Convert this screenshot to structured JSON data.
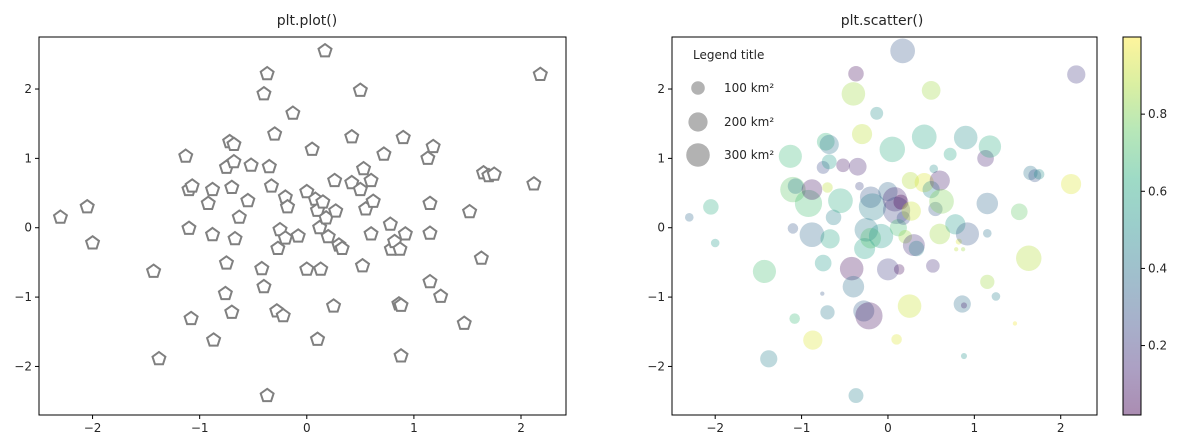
{
  "chart_data": [
    {
      "type": "scatter",
      "title": "plt.plot()",
      "xlabel": "",
      "ylabel": "",
      "xlim": [
        -2.5,
        2.42
      ],
      "ylim": [
        -2.7,
        2.75
      ],
      "xticks": [
        -2,
        -1,
        0,
        1,
        2
      ],
      "yticks": [
        -2,
        -1,
        0,
        1,
        2
      ],
      "marker": "pentagon",
      "marker_color": "#808080",
      "points": [
        [
          -2.3,
          0.15
        ],
        [
          -2.05,
          0.3
        ],
        [
          -2.0,
          -0.22
        ],
        [
          -1.43,
          -0.63
        ],
        [
          -1.38,
          -1.89
        ],
        [
          -1.13,
          1.03
        ],
        [
          -1.1,
          0.55
        ],
        [
          -1.07,
          0.6
        ],
        [
          -1.1,
          -0.01
        ],
        [
          -1.08,
          -1.31
        ],
        [
          -0.92,
          0.35
        ],
        [
          -0.88,
          0.55
        ],
        [
          -0.88,
          -0.1
        ],
        [
          -0.87,
          -1.62
        ],
        [
          -0.75,
          0.87
        ],
        [
          -0.72,
          1.24
        ],
        [
          -0.68,
          1.2
        ],
        [
          -0.68,
          0.95
        ],
        [
          -0.7,
          0.58
        ],
        [
          -0.67,
          -0.16
        ],
        [
          -0.7,
          -1.22
        ],
        [
          -0.75,
          -0.51
        ],
        [
          -0.76,
          -0.95
        ],
        [
          -0.63,
          0.15
        ],
        [
          -0.55,
          0.39
        ],
        [
          -0.52,
          0.9
        ],
        [
          -0.4,
          1.93
        ],
        [
          -0.37,
          2.22
        ],
        [
          -0.35,
          0.88
        ],
        [
          -0.33,
          0.6
        ],
        [
          -0.3,
          1.35
        ],
        [
          -0.2,
          0.44
        ],
        [
          -0.18,
          0.3
        ],
        [
          -0.27,
          -0.3
        ],
        [
          -0.25,
          -0.03
        ],
        [
          -0.2,
          -0.15
        ],
        [
          -0.08,
          -0.12
        ],
        [
          -0.42,
          -0.59
        ],
        [
          -0.4,
          -0.85
        ],
        [
          -0.28,
          -1.2
        ],
        [
          -0.22,
          -1.27
        ],
        [
          -0.37,
          -2.42
        ],
        [
          -0.13,
          1.65
        ],
        [
          0.05,
          1.13
        ],
        [
          0.0,
          0.52
        ],
        [
          0.08,
          0.41
        ],
        [
          0.1,
          0.25
        ],
        [
          0.12,
          0.0
        ],
        [
          0.15,
          0.37
        ],
        [
          0.18,
          0.14
        ],
        [
          0.2,
          -0.13
        ],
        [
          0.26,
          0.68
        ],
        [
          0.27,
          0.24
        ],
        [
          0.3,
          -0.25
        ],
        [
          0.33,
          -0.3
        ],
        [
          0.0,
          -0.6
        ],
        [
          0.13,
          -0.6
        ],
        [
          0.25,
          -1.13
        ],
        [
          0.1,
          -1.61
        ],
        [
          0.17,
          2.55
        ],
        [
          0.42,
          1.31
        ],
        [
          0.42,
          0.65
        ],
        [
          0.5,
          0.55
        ],
        [
          0.53,
          0.85
        ],
        [
          0.55,
          0.27
        ],
        [
          0.6,
          0.68
        ],
        [
          0.62,
          0.38
        ],
        [
          0.6,
          -0.09
        ],
        [
          0.52,
          -0.55
        ],
        [
          0.72,
          1.06
        ],
        [
          0.78,
          0.05
        ],
        [
          0.79,
          -0.31
        ],
        [
          0.82,
          -0.2
        ],
        [
          0.87,
          -0.31
        ],
        [
          0.92,
          -0.09
        ],
        [
          0.9,
          1.3
        ],
        [
          0.86,
          -1.1
        ],
        [
          0.88,
          -1.12
        ],
        [
          0.88,
          -1.85
        ],
        [
          0.5,
          1.98
        ],
        [
          1.13,
          1.0
        ],
        [
          1.18,
          1.17
        ],
        [
          1.15,
          0.35
        ],
        [
          1.15,
          -0.08
        ],
        [
          1.15,
          -0.78
        ],
        [
          1.25,
          -0.99
        ],
        [
          1.47,
          -1.38
        ],
        [
          1.52,
          0.23
        ],
        [
          1.63,
          -0.44
        ],
        [
          1.65,
          0.79
        ],
        [
          1.7,
          0.75
        ],
        [
          1.75,
          0.77
        ],
        [
          2.12,
          0.63
        ],
        [
          2.18,
          2.21
        ]
      ]
    },
    {
      "type": "scatter",
      "title": "plt.scatter()",
      "xlabel": "",
      "ylabel": "",
      "xlim": [
        -2.5,
        2.42
      ],
      "ylim": [
        -2.7,
        2.75
      ],
      "xticks": [
        -2,
        -1,
        0,
        1,
        2
      ],
      "yticks": [
        -2,
        -1,
        0,
        1,
        2
      ],
      "alpha": 0.3,
      "colormap": "viridis",
      "colorbar": {
        "range": [
          0.02,
          1.0
        ],
        "ticks": [
          0.2,
          0.4,
          0.6,
          0.8
        ]
      },
      "legend": {
        "title": "Legend title",
        "placement": "upper-left",
        "items": [
          {
            "label": "100 km²",
            "area": 100
          },
          {
            "label": "200 km²",
            "area": 200
          },
          {
            "label": "300 km²",
            "area": 300
          }
        ]
      },
      "points": [
        {
          "x": -2.3,
          "y": 0.15,
          "size": 40,
          "c": 0.35
        },
        {
          "x": -2.05,
          "y": 0.3,
          "size": 130,
          "c": 0.62
        },
        {
          "x": -2.0,
          "y": -0.22,
          "size": 40,
          "c": 0.55
        },
        {
          "x": -1.43,
          "y": -0.63,
          "size": 290,
          "c": 0.7
        },
        {
          "x": -1.38,
          "y": -1.89,
          "size": 160,
          "c": 0.45
        },
        {
          "x": -1.13,
          "y": 1.03,
          "size": 290,
          "c": 0.68
        },
        {
          "x": -1.1,
          "y": 0.55,
          "size": 350,
          "c": 0.74
        },
        {
          "x": -1.07,
          "y": 0.6,
          "size": 130,
          "c": 0.42
        },
        {
          "x": -1.1,
          "y": -0.01,
          "size": 60,
          "c": 0.3
        },
        {
          "x": -1.08,
          "y": -1.31,
          "size": 60,
          "c": 0.68
        },
        {
          "x": -0.92,
          "y": 0.35,
          "size": 400,
          "c": 0.7
        },
        {
          "x": -0.88,
          "y": 0.55,
          "size": 230,
          "c": 0.08
        },
        {
          "x": -0.88,
          "y": -0.1,
          "size": 330,
          "c": 0.35
        },
        {
          "x": -0.87,
          "y": -1.62,
          "size": 200,
          "c": 0.95
        },
        {
          "x": -0.75,
          "y": 0.87,
          "size": 90,
          "c": 0.25
        },
        {
          "x": -0.72,
          "y": 1.24,
          "size": 170,
          "c": 0.65
        },
        {
          "x": -0.68,
          "y": 1.2,
          "size": 200,
          "c": 0.4
        },
        {
          "x": -0.68,
          "y": 0.95,
          "size": 120,
          "c": 0.55
        },
        {
          "x": -0.7,
          "y": 0.58,
          "size": 60,
          "c": 0.9
        },
        {
          "x": -0.67,
          "y": -0.16,
          "size": 200,
          "c": 0.6
        },
        {
          "x": -0.7,
          "y": -1.22,
          "size": 110,
          "c": 0.42
        },
        {
          "x": -0.75,
          "y": -0.51,
          "size": 150,
          "c": 0.55
        },
        {
          "x": -0.76,
          "y": -0.95,
          "size": 10,
          "c": 0.3
        },
        {
          "x": -0.63,
          "y": 0.15,
          "size": 130,
          "c": 0.45
        },
        {
          "x": -0.55,
          "y": 0.39,
          "size": 330,
          "c": 0.62
        },
        {
          "x": -0.52,
          "y": 0.9,
          "size": 100,
          "c": 0.08
        },
        {
          "x": -0.4,
          "y": 1.93,
          "size": 300,
          "c": 0.85
        },
        {
          "x": -0.37,
          "y": 2.22,
          "size": 130,
          "c": 0.05
        },
        {
          "x": -0.35,
          "y": 0.88,
          "size": 170,
          "c": 0.12
        },
        {
          "x": -0.33,
          "y": 0.6,
          "size": 40,
          "c": 0.22
        },
        {
          "x": -0.3,
          "y": 1.35,
          "size": 220,
          "c": 0.9
        },
        {
          "x": -0.2,
          "y": 0.44,
          "size": 250,
          "c": 0.3
        },
        {
          "x": -0.18,
          "y": 0.3,
          "size": 400,
          "c": 0.45
        },
        {
          "x": -0.27,
          "y": -0.3,
          "size": 240,
          "c": 0.58
        },
        {
          "x": -0.25,
          "y": -0.03,
          "size": 300,
          "c": 0.42
        },
        {
          "x": -0.2,
          "y": -0.15,
          "size": 230,
          "c": 0.72
        },
        {
          "x": -0.08,
          "y": -0.12,
          "size": 320,
          "c": 0.55
        },
        {
          "x": -0.42,
          "y": -0.59,
          "size": 300,
          "c": 0.05
        },
        {
          "x": -0.4,
          "y": -0.85,
          "size": 250,
          "c": 0.38
        },
        {
          "x": -0.28,
          "y": -1.2,
          "size": 240,
          "c": 0.32
        },
        {
          "x": -0.22,
          "y": -1.27,
          "size": 400,
          "c": 0.06
        },
        {
          "x": -0.37,
          "y": -2.42,
          "size": 120,
          "c": 0.45
        },
        {
          "x": -0.13,
          "y": 1.65,
          "size": 90,
          "c": 0.5
        },
        {
          "x": 0.05,
          "y": 1.13,
          "size": 350,
          "c": 0.62
        },
        {
          "x": 0.0,
          "y": 0.52,
          "size": 200,
          "c": 0.35
        },
        {
          "x": 0.08,
          "y": 0.41,
          "size": 320,
          "c": 0.12
        },
        {
          "x": 0.1,
          "y": 0.25,
          "size": 400,
          "c": 0.22
        },
        {
          "x": 0.12,
          "y": 0.0,
          "size": 160,
          "c": 0.7
        },
        {
          "x": 0.15,
          "y": 0.37,
          "size": 120,
          "c": 0.02
        },
        {
          "x": 0.18,
          "y": 0.14,
          "size": 100,
          "c": 0.25
        },
        {
          "x": 0.2,
          "y": -0.13,
          "size": 100,
          "c": 0.85
        },
        {
          "x": 0.26,
          "y": 0.68,
          "size": 160,
          "c": 0.88
        },
        {
          "x": 0.27,
          "y": 0.24,
          "size": 200,
          "c": 0.92
        },
        {
          "x": 0.3,
          "y": -0.25,
          "size": 260,
          "c": 0.15
        },
        {
          "x": 0.33,
          "y": -0.3,
          "size": 130,
          "c": 0.45
        },
        {
          "x": 0.0,
          "y": -0.6,
          "size": 260,
          "c": 0.2
        },
        {
          "x": 0.13,
          "y": -0.6,
          "size": 60,
          "c": 0.05
        },
        {
          "x": 0.25,
          "y": -1.13,
          "size": 300,
          "c": 0.92
        },
        {
          "x": 0.1,
          "y": -1.61,
          "size": 60,
          "c": 0.95
        },
        {
          "x": 0.17,
          "y": 2.55,
          "size": 330,
          "c": 0.3
        },
        {
          "x": 0.42,
          "y": 1.31,
          "size": 330,
          "c": 0.6
        },
        {
          "x": 0.42,
          "y": 0.65,
          "size": 200,
          "c": 0.95
        },
        {
          "x": 0.5,
          "y": 0.55,
          "size": 160,
          "c": 0.48
        },
        {
          "x": 0.53,
          "y": 0.85,
          "size": 40,
          "c": 0.5
        },
        {
          "x": 0.55,
          "y": 0.27,
          "size": 110,
          "c": 0.3
        },
        {
          "x": 0.6,
          "y": 0.68,
          "size": 220,
          "c": 0.1
        },
        {
          "x": 0.62,
          "y": 0.38,
          "size": 330,
          "c": 0.8
        },
        {
          "x": 0.6,
          "y": -0.09,
          "size": 230,
          "c": 0.85
        },
        {
          "x": 0.52,
          "y": -0.55,
          "size": 100,
          "c": 0.15
        },
        {
          "x": 0.72,
          "y": 1.06,
          "size": 90,
          "c": 0.6
        },
        {
          "x": 0.78,
          "y": 0.05,
          "size": 220,
          "c": 0.55
        },
        {
          "x": 0.79,
          "y": -0.31,
          "size": 10,
          "c": 0.9
        },
        {
          "x": 0.82,
          "y": -0.2,
          "size": 20,
          "c": 0.95
        },
        {
          "x": 0.87,
          "y": -0.31,
          "size": 10,
          "c": 0.85
        },
        {
          "x": 0.92,
          "y": -0.09,
          "size": 290,
          "c": 0.3
        },
        {
          "x": 0.9,
          "y": 1.3,
          "size": 300,
          "c": 0.5
        },
        {
          "x": 0.86,
          "y": -1.1,
          "size": 160,
          "c": 0.38
        },
        {
          "x": 0.88,
          "y": -1.12,
          "size": 20,
          "c": 0.1
        },
        {
          "x": 0.88,
          "y": -1.85,
          "size": 20,
          "c": 0.52
        },
        {
          "x": 0.5,
          "y": 1.98,
          "size": 190,
          "c": 0.85
        },
        {
          "x": 1.13,
          "y": 1.0,
          "size": 150,
          "c": 0.12
        },
        {
          "x": 1.18,
          "y": 1.17,
          "size": 270,
          "c": 0.62
        },
        {
          "x": 1.15,
          "y": 0.35,
          "size": 250,
          "c": 0.35
        },
        {
          "x": 1.15,
          "y": -0.08,
          "size": 40,
          "c": 0.4
        },
        {
          "x": 1.15,
          "y": -0.78,
          "size": 110,
          "c": 0.85
        },
        {
          "x": 1.25,
          "y": -0.99,
          "size": 40,
          "c": 0.45
        },
        {
          "x": 1.47,
          "y": -1.38,
          "size": 10,
          "c": 0.98
        },
        {
          "x": 1.52,
          "y": 0.23,
          "size": 150,
          "c": 0.75
        },
        {
          "x": 1.63,
          "y": -0.44,
          "size": 350,
          "c": 0.88
        },
        {
          "x": 1.65,
          "y": 0.79,
          "size": 110,
          "c": 0.4
        },
        {
          "x": 1.7,
          "y": 0.75,
          "size": 90,
          "c": 0.28
        },
        {
          "x": 1.75,
          "y": 0.77,
          "size": 60,
          "c": 0.5
        },
        {
          "x": 2.12,
          "y": 0.63,
          "size": 220,
          "c": 0.95
        },
        {
          "x": 2.18,
          "y": 2.21,
          "size": 180,
          "c": 0.18
        }
      ]
    }
  ]
}
